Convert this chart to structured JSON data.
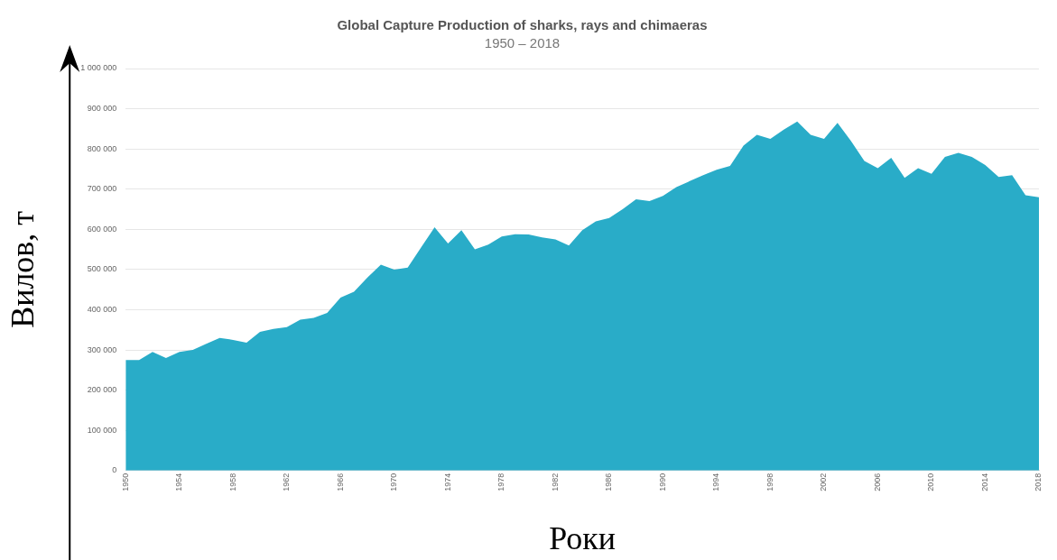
{
  "chart_data": {
    "type": "area",
    "title": "Global Capture Production of sharks, rays and chimaeras",
    "subtitle": "1950 – 2018",
    "xlabel": "Роки",
    "ylabel": "Вилов, т",
    "x": [
      1950,
      1951,
      1952,
      1953,
      1954,
      1955,
      1956,
      1957,
      1958,
      1959,
      1960,
      1961,
      1962,
      1963,
      1964,
      1965,
      1966,
      1967,
      1968,
      1969,
      1970,
      1971,
      1972,
      1973,
      1974,
      1975,
      1976,
      1977,
      1978,
      1979,
      1980,
      1981,
      1982,
      1983,
      1984,
      1985,
      1986,
      1987,
      1988,
      1989,
      1990,
      1991,
      1992,
      1993,
      1994,
      1995,
      1996,
      1997,
      1998,
      1999,
      2000,
      2001,
      2002,
      2003,
      2004,
      2005,
      2006,
      2007,
      2008,
      2009,
      2010,
      2011,
      2012,
      2013,
      2014,
      2015,
      2016,
      2017,
      2018
    ],
    "series": [
      {
        "color": "#29acc8",
        "values": [
          275000,
          275000,
          295000,
          280000,
          295000,
          300000,
          315000,
          330000,
          325000,
          318000,
          345000,
          352000,
          357000,
          375000,
          380000,
          392000,
          430000,
          445000,
          480000,
          512000,
          500000,
          505000,
          555000,
          605000,
          565000,
          598000,
          550000,
          562000,
          582000,
          588000,
          587000,
          580000,
          575000,
          560000,
          598000,
          620000,
          628000,
          650000,
          675000,
          670000,
          683000,
          705000,
          720000,
          735000,
          748000,
          758000,
          808000,
          835000,
          825000,
          848000,
          868000,
          835000,
          825000,
          865000,
          820000,
          770000,
          752000,
          778000,
          728000,
          752000,
          738000,
          780000,
          790000,
          780000,
          760000,
          730000,
          735000,
          685000,
          680000
        ]
      }
    ],
    "xlim": [
      1950,
      2018
    ],
    "xticks": [
      1950,
      1954,
      1958,
      1962,
      1966,
      1970,
      1974,
      1978,
      1982,
      1986,
      1990,
      1994,
      1998,
      2002,
      2006,
      2010,
      2014,
      2018
    ],
    "ylim": [
      0,
      1000000
    ],
    "yticks": [
      {
        "value": 0,
        "label": "0"
      },
      {
        "value": 100000,
        "label": "100 000"
      },
      {
        "value": 200000,
        "label": "200 000"
      },
      {
        "value": 300000,
        "label": "300 000"
      },
      {
        "value": 400000,
        "label": "400 000"
      },
      {
        "value": 500000,
        "label": "500 000"
      },
      {
        "value": 600000,
        "label": "600 000"
      },
      {
        "value": 700000,
        "label": "700 000"
      },
      {
        "value": 800000,
        "label": "800 000"
      },
      {
        "value": 900000,
        "label": "900 000"
      },
      {
        "value": 1000000,
        "label": "1 000 000"
      }
    ],
    "grid": "y",
    "marker": "none"
  }
}
